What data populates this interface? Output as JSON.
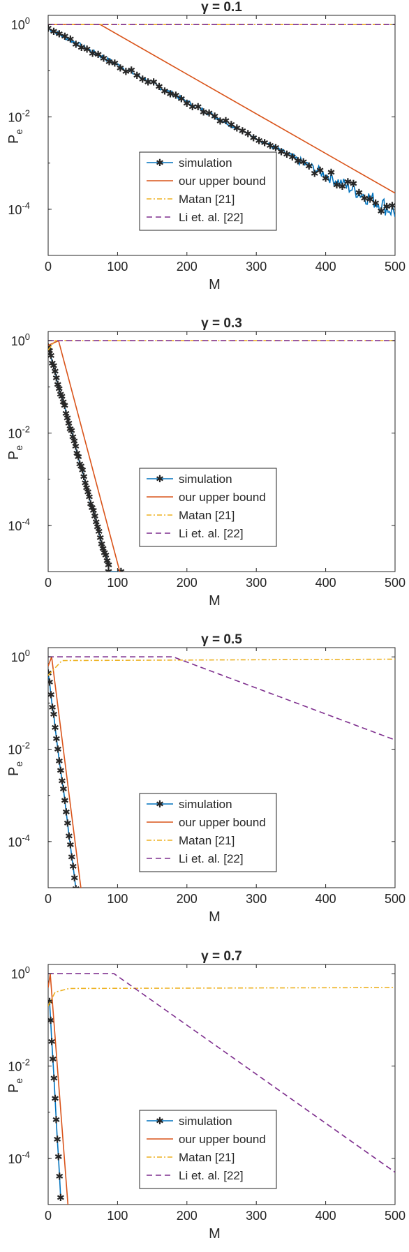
{
  "chart_data": [
    {
      "type": "line",
      "title": "γ = 0.1",
      "xlabel": "M",
      "ylabel": "P_e",
      "xlim": [
        0,
        500
      ],
      "ylim_log10": [
        -5,
        0.2
      ],
      "y_scale": "log",
      "x_ticks": [
        "0",
        "100",
        "200",
        "300",
        "400",
        "500"
      ],
      "y_ticks": [
        "10^0",
        "10^-2",
        "10^-4"
      ],
      "legend_position": "lower-center",
      "series": [
        {
          "name": "simulation",
          "style": "solid-star",
          "color": "#0072BD",
          "x_start": 0,
          "x_end": 500,
          "log10_start": -0.08,
          "log10_end": -4.05,
          "noise_from": 270
        },
        {
          "name": "our upper bound",
          "style": "solid",
          "color": "#D95319",
          "points": [
            [
              0,
              0
            ],
            [
              75,
              0
            ],
            [
              500,
              -3.65
            ]
          ]
        },
        {
          "name": "Matan [21]",
          "style": "dashdot",
          "color": "#EDB120",
          "points": [
            [
              0,
              0
            ],
            [
              500,
              0
            ]
          ]
        },
        {
          "name": "Li et. al. [22]",
          "style": "dashed",
          "color": "#7E2F8E",
          "points": [
            [
              0,
              0
            ],
            [
              500,
              0
            ]
          ]
        }
      ]
    },
    {
      "type": "line",
      "title": "γ = 0.3",
      "xlabel": "M",
      "ylabel": "P_e",
      "xlim": [
        0,
        500
      ],
      "ylim_log10": [
        -5,
        0.2
      ],
      "y_scale": "log",
      "x_ticks": [
        "0",
        "100",
        "200",
        "300",
        "400",
        "500"
      ],
      "y_ticks": [
        "10^0",
        "10^-2",
        "10^-4"
      ],
      "legend_position": "lower-center",
      "series": [
        {
          "name": "simulation",
          "style": "solid-star",
          "color": "#0072BD",
          "x_start": 0,
          "x_end": 87,
          "log10_start": -0.15,
          "log10_end": -4.9,
          "noise_from": 9999,
          "tail": [
            [
              87,
              -5.0
            ],
            [
              105,
              -5.0
            ]
          ]
        },
        {
          "name": "our upper bound",
          "style": "solid",
          "color": "#D95319",
          "points": [
            [
              0,
              -0.1
            ],
            [
              15,
              0
            ],
            [
              105,
              -5.1
            ]
          ]
        },
        {
          "name": "Matan [21]",
          "style": "dashdot",
          "color": "#EDB120",
          "points": [
            [
              0,
              -0.2
            ],
            [
              10,
              0
            ],
            [
              500,
              0
            ]
          ]
        },
        {
          "name": "Li et. al. [22]",
          "style": "dashed",
          "color": "#7E2F8E",
          "points": [
            [
              0,
              0
            ],
            [
              500,
              0
            ]
          ]
        }
      ]
    },
    {
      "type": "line",
      "title": "γ = 0.5",
      "xlabel": "M",
      "ylabel": "P_e",
      "xlim": [
        0,
        500
      ],
      "ylim_log10": [
        -5,
        0.2
      ],
      "y_scale": "log",
      "x_ticks": [
        "0",
        "100",
        "200",
        "300",
        "400",
        "500"
      ],
      "y_ticks": [
        "10^0",
        "10^-2",
        "10^-4"
      ],
      "legend_position": "lower-center",
      "series": [
        {
          "name": "simulation",
          "style": "solid-star",
          "color": "#0072BD",
          "x_start": 0,
          "x_end": 40,
          "log10_start": -0.35,
          "log10_end": -5.0,
          "noise_from": 9999
        },
        {
          "name": "our upper bound",
          "style": "solid",
          "color": "#D95319",
          "points": [
            [
              0,
              -0.2
            ],
            [
              5,
              0
            ],
            [
              48,
              -5.1
            ]
          ]
        },
        {
          "name": "Matan [21]",
          "style": "dashdot",
          "color": "#EDB120",
          "points": [
            [
              0,
              -0.4
            ],
            [
              20,
              -0.08
            ],
            [
              500,
              -0.05
            ]
          ]
        },
        {
          "name": "Li et. al. [22]",
          "style": "dashed",
          "color": "#7E2F8E",
          "points": [
            [
              0,
              0
            ],
            [
              180,
              0
            ],
            [
              500,
              -1.8
            ]
          ]
        }
      ]
    },
    {
      "type": "line",
      "title": "γ = 0.7",
      "xlabel": "M",
      "ylabel": "P_e",
      "xlim": [
        0,
        500
      ],
      "ylim_log10": [
        -5,
        0.2
      ],
      "y_scale": "log",
      "x_ticks": [
        "0",
        "100",
        "200",
        "300",
        "400",
        "500"
      ],
      "y_ticks": [
        "10^0",
        "10^-2",
        "10^-4"
      ],
      "legend_position": "lower-center",
      "series": [
        {
          "name": "simulation",
          "style": "solid-star",
          "color": "#0072BD",
          "x_start": 2,
          "x_end": 18,
          "log10_start": -0.6,
          "log10_end": -4.8,
          "noise_from": 9999
        },
        {
          "name": "our upper bound",
          "style": "solid",
          "color": "#D95319",
          "points": [
            [
              0,
              -0.3
            ],
            [
              3,
              0
            ],
            [
              29,
              -5.1
            ]
          ]
        },
        {
          "name": "Matan [21]",
          "style": "dashdot",
          "color": "#EDB120",
          "points": [
            [
              0,
              -0.7
            ],
            [
              10,
              -0.4
            ],
            [
              30,
              -0.32
            ],
            [
              500,
              -0.3
            ]
          ]
        },
        {
          "name": "Li et. al. [22]",
          "style": "dashed",
          "color": "#7E2F8E",
          "points": [
            [
              0,
              0
            ],
            [
              95,
              0
            ],
            [
              500,
              -4.3
            ]
          ]
        }
      ]
    }
  ]
}
